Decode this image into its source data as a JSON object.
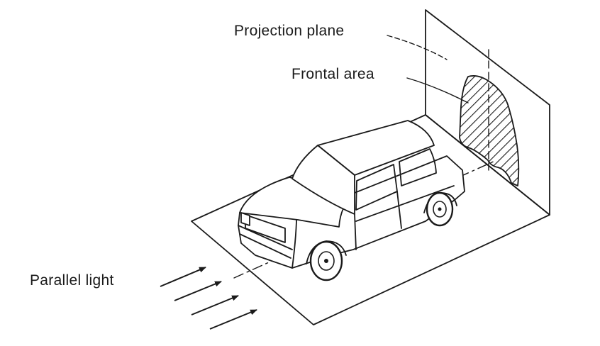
{
  "labels": {
    "projection_plane": "Projection plane",
    "frontal_area": "Frontal area",
    "parallel_light": "Parallel light"
  },
  "colors": {
    "ink": "#1a1a1a",
    "background": "#ffffff"
  }
}
